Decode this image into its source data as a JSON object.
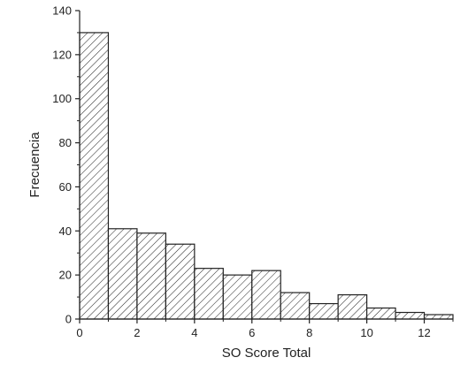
{
  "chart_data": {
    "type": "bar",
    "title": "",
    "xlabel": "SO Score Total",
    "ylabel": "Frecuencia",
    "bins": [
      {
        "start": 0,
        "end": 1,
        "value": 130
      },
      {
        "start": 1,
        "end": 2,
        "value": 41
      },
      {
        "start": 2,
        "end": 3,
        "value": 39
      },
      {
        "start": 3,
        "end": 4,
        "value": 34
      },
      {
        "start": 4,
        "end": 5,
        "value": 23
      },
      {
        "start": 5,
        "end": 6,
        "value": 20
      },
      {
        "start": 6,
        "end": 7,
        "value": 22
      },
      {
        "start": 7,
        "end": 8,
        "value": 12
      },
      {
        "start": 8,
        "end": 9,
        "value": 7
      },
      {
        "start": 9,
        "end": 10,
        "value": 11
      },
      {
        "start": 10,
        "end": 11,
        "value": 5
      },
      {
        "start": 11,
        "end": 12,
        "value": 3
      },
      {
        "start": 12,
        "end": 13,
        "value": 2
      }
    ],
    "xlim": [
      0,
      13
    ],
    "ylim": [
      0,
      140
    ],
    "xticks": [
      "0",
      "2",
      "4",
      "6",
      "8",
      "10",
      "12"
    ],
    "yticks": [
      "0",
      "20",
      "40",
      "60",
      "80",
      "100",
      "120",
      "140"
    ],
    "grid": false,
    "fill_pattern": "diagonal-hatch"
  }
}
